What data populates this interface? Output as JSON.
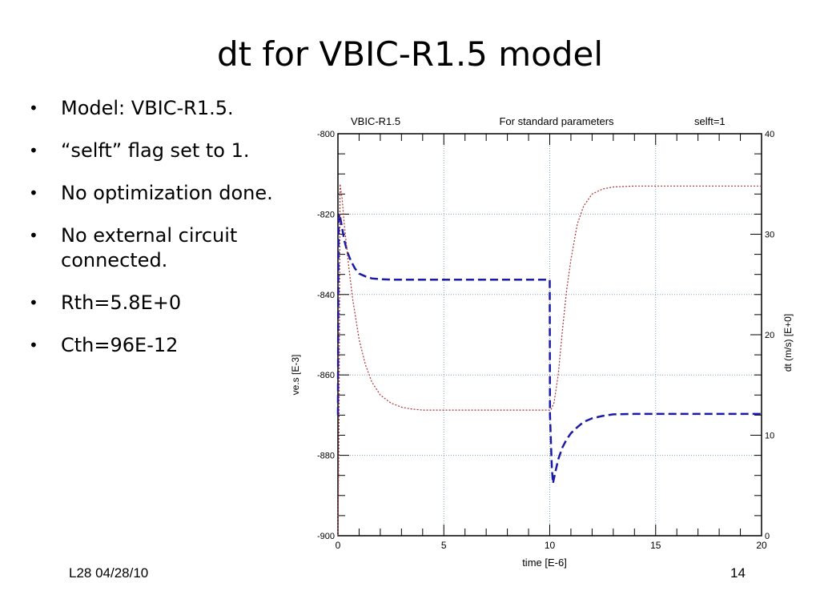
{
  "slide": {
    "title": "dt for VBIC-R1.5 model",
    "bullets": [
      "Model: VBIC-R1.5.",
      "“selft” flag set to 1.",
      "No optimization done.",
      "No external circuit connected.",
      "Rth=5.8E+0",
      "Cth=96E-12"
    ],
    "bullet_glyph": "•",
    "footer_left": "L28 04/28/10",
    "page_number": "14"
  },
  "chart_data": {
    "type": "line",
    "header_left": "VBIC-R1.5",
    "header_center": "For standard parameters",
    "header_right": "selft=1",
    "xlabel": "time  [E-6]",
    "ylabel_left": "ve.s  [E-3]",
    "ylabel_right": "dt (m/s)  [E+0]",
    "xlim": [
      0,
      20
    ],
    "ylim_left": [
      -900,
      -800
    ],
    "ylim_right": [
      0,
      40
    ],
    "x_ticks": [
      "0",
      "5",
      "10",
      "15",
      "20"
    ],
    "y_left_ticks": [
      "-800",
      "-820",
      "-840",
      "-860",
      "-880",
      "-900"
    ],
    "y_right_ticks": [
      "40",
      "30",
      "20",
      "10",
      "0"
    ],
    "grid": true,
    "series": [
      {
        "axis": "left",
        "color": "#1a1aa6",
        "style": "dashed",
        "x": [
          0,
          0.01,
          0.02,
          0.04,
          0.08,
          0.12,
          0.2,
          0.3,
          0.45,
          0.6,
          0.8,
          1.0,
          1.3,
          1.6,
          2.0,
          2.5,
          3.0,
          4.0,
          5.0,
          7.0,
          10.0,
          10.01,
          10.1,
          10.15,
          10.25,
          10.4,
          10.6,
          10.8,
          11.0,
          11.3,
          11.6,
          12.0,
          12.5,
          13.0,
          14.0,
          15.0,
          17.0,
          20.0
        ],
        "values": [
          -870,
          -845,
          -830,
          -821,
          -820,
          -821.2,
          -823.5,
          -826.5,
          -829.5,
          -831.5,
          -833.5,
          -834.8,
          -835.5,
          -836,
          -836.2,
          -836.3,
          -836.3,
          -836.3,
          -836.3,
          -836.3,
          -836.3,
          -870,
          -883,
          -887,
          -884.5,
          -881,
          -878,
          -876,
          -874.5,
          -873,
          -871.7,
          -870.8,
          -870.2,
          -869.8,
          -869.7,
          -869.7,
          -869.7,
          -869.7
        ]
      },
      {
        "axis": "right",
        "color": "#b03030",
        "style": "dotted",
        "x": [
          0,
          0.05,
          0.1,
          0.2,
          0.3,
          0.5,
          0.7,
          1.0,
          1.3,
          1.6,
          2.0,
          2.5,
          3.0,
          3.5,
          4.0,
          5.0,
          7.0,
          10.0,
          10.05,
          10.2,
          10.4,
          10.6,
          10.8,
          11.0,
          11.3,
          11.6,
          12.0,
          12.5,
          13.0,
          14.0,
          15.0,
          17.0,
          20.0
        ],
        "values": [
          0,
          10,
          35,
          33.5,
          31,
          27,
          23.5,
          19.5,
          17,
          15.3,
          14,
          13.2,
          12.8,
          12.6,
          12.5,
          12.5,
          12.5,
          12.5,
          12.5,
          13.2,
          16,
          20.5,
          24.5,
          27.5,
          31,
          32.8,
          34,
          34.5,
          34.7,
          34.8,
          34.8,
          34.8,
          34.8
        ]
      }
    ]
  }
}
